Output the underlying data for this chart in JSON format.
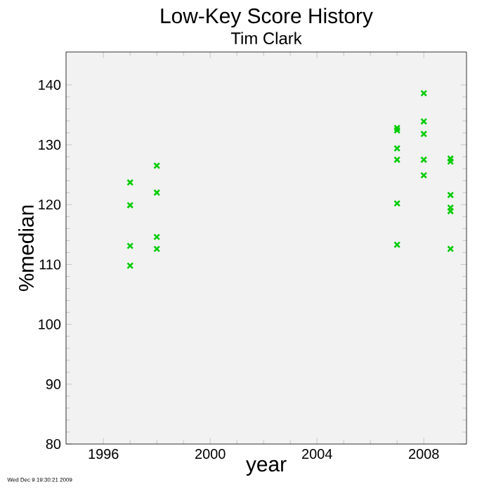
{
  "chart_data": {
    "type": "scatter",
    "title": "Low-Key Score History",
    "subtitle": "Tim Clark",
    "xlabel": "year",
    "ylabel": "%median",
    "annotations": [
      "Wed Dec  9 19:30:21 2009"
    ],
    "x": [
      1997,
      1997,
      1997,
      1997,
      1998,
      1998,
      1998,
      1998,
      2007,
      2007,
      2007,
      2007,
      2007,
      2007,
      2008,
      2008,
      2008,
      2008,
      2008,
      2009,
      2009,
      2009,
      2009,
      2009,
      2009
    ],
    "values": [
      123.7,
      119.9,
      113.1,
      109.8,
      126.5,
      122.0,
      114.6,
      112.6,
      132.8,
      132.4,
      129.4,
      127.5,
      120.2,
      113.3,
      138.6,
      133.9,
      131.8,
      127.5,
      124.9,
      127.7,
      127.2,
      121.6,
      119.5,
      118.9,
      112.6
    ],
    "color": "#00cc00",
    "marker": "cross",
    "xlim": [
      1994.6,
      2009.6
    ],
    "ylim": [
      80,
      145.5
    ],
    "xticks": [
      1996,
      2000,
      2004,
      2008
    ],
    "yticks": [
      80,
      90,
      100,
      110,
      120,
      130,
      140
    ]
  }
}
